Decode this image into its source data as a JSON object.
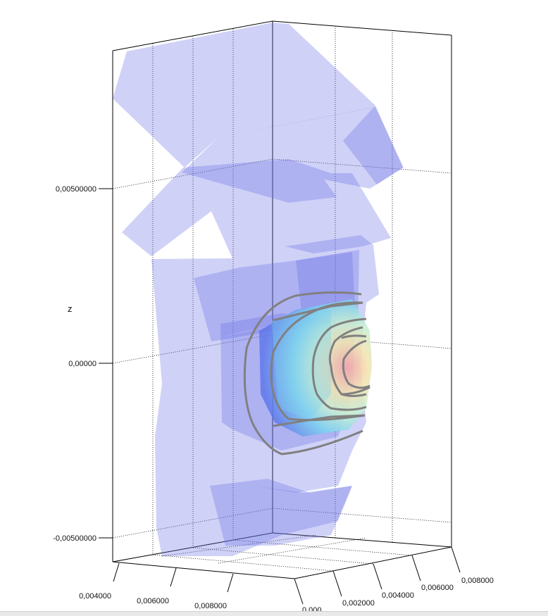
{
  "chart_data": {
    "type": "surface3d",
    "z_axis": {
      "label": "z",
      "ticks": [
        "0,00500000",
        "0,00000",
        "-0,00500000"
      ]
    },
    "x_axis": {
      "label": "",
      "ticks": [
        "0,004000",
        "0,006000",
        "0,008000"
      ]
    },
    "y_axis": {
      "label": "",
      "ticks": [
        "0.000",
        "0,002000",
        "0,004000",
        "0,006000",
        "0,008000"
      ]
    },
    "grid": true,
    "surface_color_low": "#7a80ee",
    "surface_color_high": "#f4a8a8",
    "contour_color": "#808080",
    "contour_levels": 4
  }
}
